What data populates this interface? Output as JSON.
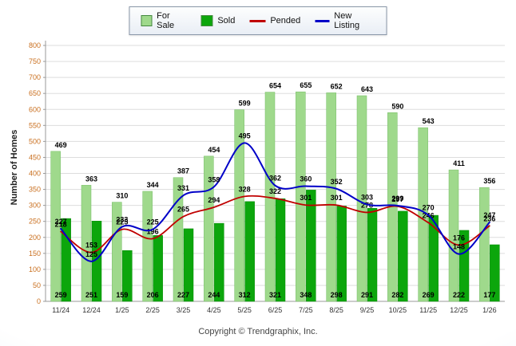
{
  "chart_data": {
    "type": "bar",
    "categories": [
      "11/24",
      "12/24",
      "1/25",
      "2/25",
      "3/25",
      "4/25",
      "5/25",
      "6/25",
      "7/25",
      "8/25",
      "9/25",
      "10/25",
      "11/25",
      "12/25",
      "1/26"
    ],
    "series": [
      {
        "name": "For Sale",
        "type": "bar",
        "color": "#9fd98c",
        "stroke": "#74bd63",
        "label_position": "above",
        "values": [
          469,
          363,
          310,
          344,
          387,
          454,
          599,
          654,
          655,
          652,
          643,
          590,
          543,
          411,
          356
        ]
      },
      {
        "name": "Sold",
        "type": "bar",
        "color": "#0ca60c",
        "stroke": "#078a07",
        "label_position": "bottom",
        "values": [
          259,
          251,
          159,
          206,
          227,
          244,
          312,
          321,
          348,
          298,
          291,
          282,
          269,
          222,
          177
        ]
      },
      {
        "name": "Pended",
        "type": "line",
        "color": "#c00000",
        "width": 1.8,
        "values": [
          218,
          153,
          225,
          196,
          265,
          294,
          328,
          322,
          301,
          301,
          278,
          297,
          246,
          176,
          236
        ]
      },
      {
        "name": "New Listing",
        "type": "line",
        "color": "#0000c8",
        "width": 2,
        "values": [
          227,
          125,
          233,
          225,
          331,
          358,
          495,
          362,
          360,
          352,
          303,
          299,
          270,
          148,
          247
        ]
      }
    ],
    "title": "",
    "xlabel": "",
    "ylabel": "Number of Homes",
    "ylim": [
      0,
      800
    ],
    "ytick_step": 50,
    "grid": true,
    "legend_position": "top",
    "colors": {
      "grid": "#dddddd",
      "axis": "#999999",
      "ytick_text": "#c96f1f",
      "xtick_text": "#333333"
    }
  },
  "footer": {
    "copyright": "Copyright © Trendgraphix, Inc."
  }
}
